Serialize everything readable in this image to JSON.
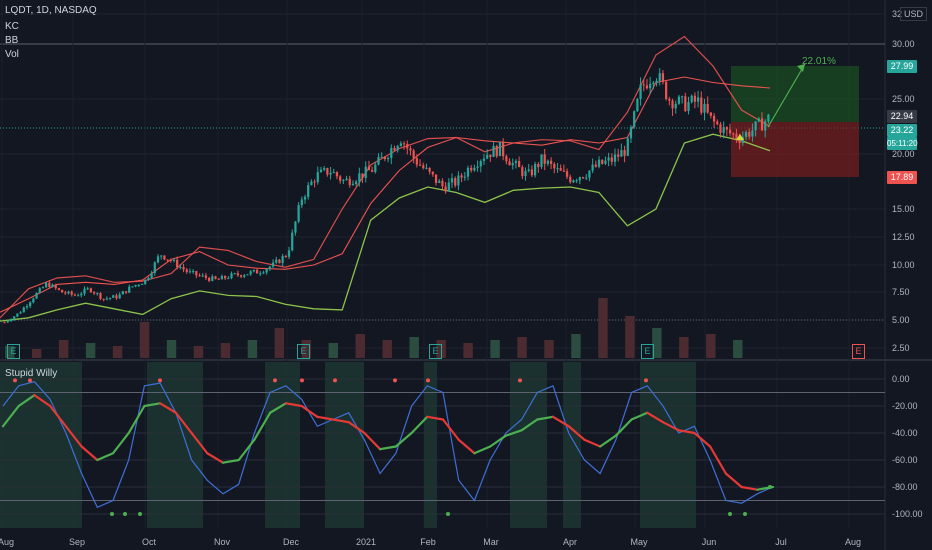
{
  "header": {
    "symbol_line": "LQDT, 1D, NASDAQ",
    "indicators": [
      "KC",
      "BB",
      "Vol"
    ],
    "lower_indicator": "Stupid Willy",
    "currency": "USD"
  },
  "annotations": {
    "target_pct": "22.01%",
    "target_price": "27.99",
    "last_price": "22.94",
    "current_price": "23.22",
    "countdown": "05:11:20",
    "stop_price": "17.89",
    "earnings_marker": "E"
  },
  "colors": {
    "background": "#131722",
    "up_candle": "#26a69a",
    "down_candle": "#ef5350",
    "bb_line": "#8bc34a",
    "kc_line": "#ef5350",
    "profit_zone": "#1b5e20",
    "loss_zone": "#7f1d1d",
    "willy_fast": "#3f6fd6",
    "willy_slow_up": "#4caf50",
    "willy_slow_down": "#e53935"
  },
  "chart_data": [
    {
      "type": "candlestick",
      "title": "LQDT, 1D, NASDAQ",
      "x_tick_labels": [
        "Aug",
        "Sep",
        "Oct",
        "Nov",
        "Dec",
        "2021",
        "Feb",
        "Mar",
        "Apr",
        "May",
        "Jun",
        "Jul",
        "Aug"
      ],
      "y_tick_labels": [
        "2.50",
        "5.00",
        "7.50",
        "10.00",
        "12.50",
        "15.00",
        "20.00",
        "25.00",
        "30.00",
        "32"
      ],
      "ylim": [
        2.5,
        32
      ],
      "close_series_approx": [
        4.8,
        5.6,
        7.0,
        8.3,
        7.5,
        7.2,
        7.8,
        6.9,
        7.1,
        8.0,
        8.6,
        11.0,
        10.2,
        9.3,
        8.9,
        8.6,
        9.0,
        9.2,
        9.4,
        10.0,
        11.0,
        16.0,
        18.0,
        18.5,
        17.5,
        18.0,
        18.6,
        20.0,
        21.5,
        19.5,
        18.2,
        17.0,
        17.5,
        19.0,
        20.0,
        20.5,
        19.0,
        18.0,
        19.5,
        18.5,
        17.8,
        18.2,
        19.0,
        19.5,
        20.5,
        26.0,
        27.5,
        25.0,
        24.5,
        24.8,
        23.0,
        22.0,
        21.5,
        22.3,
        23.22
      ],
      "bollinger_upper_approx": [
        5.2,
        7.8,
        8.8,
        9.0,
        8.4,
        8.5,
        9.2,
        11.6,
        11.3,
        10.3,
        9.8,
        10.5,
        15.0,
        19.0,
        20.5,
        21.4,
        21.5,
        20.2,
        21.0,
        21.3,
        21.2,
        20.4,
        23.8,
        29.0,
        30.5,
        28.0,
        24.0,
        22.5
      ],
      "bollinger_lower_approx": [
        4.9,
        5.2,
        5.9,
        6.5,
        6.0,
        5.5,
        6.9,
        7.6,
        7.2,
        7.1,
        6.4,
        6.0,
        5.9,
        14.0,
        16.0,
        17.0,
        16.5,
        15.6,
        16.7,
        16.9,
        17.0,
        16.5,
        13.5,
        15.0,
        21.0,
        21.8,
        21.2,
        20.3
      ],
      "keltner_upper_approx": [
        5.7,
        6.9,
        8.2,
        8.4,
        8.2,
        8.6,
        10.5,
        11.2,
        10.0,
        9.7,
        9.6,
        10.0,
        11.0,
        15.5,
        18.5,
        20.6,
        21.5,
        21.2,
        21.0,
        20.8,
        21.3,
        21.0,
        21.5,
        26.5,
        27.0,
        26.5,
        26.2,
        26.0
      ],
      "volume_relative": [
        0.2,
        0.15,
        0.3,
        0.25,
        0.2,
        0.6,
        0.3,
        0.2,
        0.25,
        0.3,
        0.5,
        0.3,
        0.25,
        0.4,
        0.3,
        0.35,
        0.3,
        0.25,
        0.3,
        0.35,
        0.3,
        0.4,
        1.0,
        0.7,
        0.5,
        0.35,
        0.4,
        0.3
      ]
    },
    {
      "type": "line",
      "title": "Stupid Willy",
      "y_tick_labels": [
        "0.00",
        "-20.00",
        "-40.00",
        "-60.00",
        "-80.00",
        "-100.00"
      ],
      "ylim": [
        -100,
        0
      ],
      "x_tick_labels": [
        "Aug",
        "Sep",
        "Oct",
        "Nov",
        "Dec",
        "2021",
        "Feb",
        "Mar",
        "Apr",
        "May",
        "Jun",
        "Jul",
        "Aug"
      ],
      "series": [
        {
          "values": [
            -20,
            -5,
            -2,
            -15,
            -40,
            -70,
            -95,
            -90,
            -60,
            -5,
            -3,
            -25,
            -60,
            -75,
            -85,
            -78,
            -40,
            -10,
            -5,
            -15,
            -35,
            -30,
            -25,
            -45,
            -70,
            -55,
            -20,
            -5,
            -10,
            -75,
            -90,
            -60,
            -40,
            -30,
            -10,
            -5,
            -40,
            -60,
            -70,
            -45,
            -10,
            -5,
            -20,
            -40,
            -35,
            -60,
            -90,
            -92,
            -85,
            -80
          ]
        },
        {
          "values": [
            -35,
            -20,
            -12,
            -20,
            -35,
            -50,
            -60,
            -55,
            -40,
            -20,
            -18,
            -25,
            -40,
            -55,
            -62,
            -60,
            -45,
            -25,
            -18,
            -20,
            -28,
            -30,
            -32,
            -40,
            -52,
            -50,
            -40,
            -28,
            -30,
            -45,
            -55,
            -50,
            -42,
            -38,
            -30,
            -28,
            -35,
            -45,
            -50,
            -42,
            -30,
            -25,
            -32,
            -38,
            -40,
            -50,
            -70,
            -80,
            -82,
            -80
          ]
        }
      ]
    }
  ]
}
